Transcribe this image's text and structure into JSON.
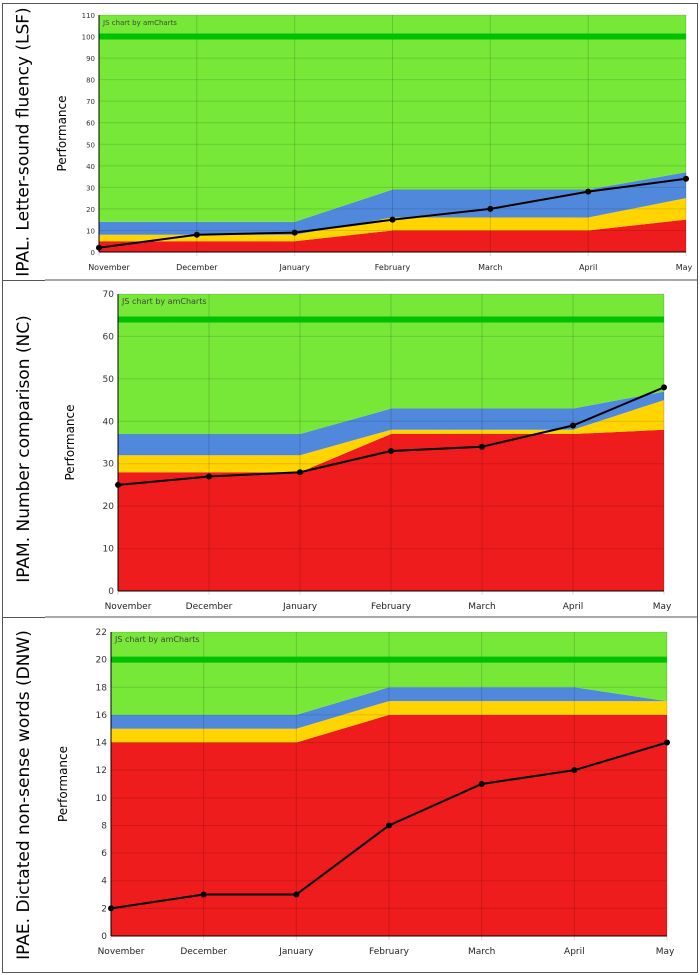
{
  "chart_data": [
    {
      "type": "area",
      "section_label": "IPAL. Letter-sound fluency (LSF)",
      "ylabel": "Performance",
      "watermark": "JS chart by amCharts",
      "categories": [
        "November",
        "December",
        "January",
        "February",
        "March",
        "April",
        "May"
      ],
      "ylim": [
        0,
        110
      ],
      "yticks": [
        0,
        10,
        20,
        30,
        40,
        50,
        60,
        70,
        80,
        90,
        100,
        110
      ],
      "target": 100,
      "bands_cumulative_top": {
        "red": [
          5,
          5,
          5,
          10,
          10,
          10,
          15
        ],
        "yellow": [
          8,
          8,
          8,
          16,
          16,
          16,
          25
        ],
        "blue": [
          14,
          14,
          14,
          29,
          29,
          29,
          37
        ],
        "green": [
          110,
          110,
          110,
          110,
          110,
          110,
          110
        ]
      },
      "line": [
        2,
        8,
        9,
        15,
        20,
        28,
        34
      ]
    },
    {
      "type": "area",
      "section_label": "IPAM. Number comparison (NC)",
      "ylabel": "Performance",
      "watermark": "JS chart by amCharts",
      "categories": [
        "November",
        "December",
        "January",
        "February",
        "March",
        "April",
        "May"
      ],
      "ylim": [
        0,
        70
      ],
      "yticks": [
        0,
        10,
        20,
        30,
        40,
        50,
        60,
        70
      ],
      "target": 64,
      "bands_cumulative_top": {
        "red": [
          28,
          28,
          28,
          37,
          37,
          37,
          38
        ],
        "yellow": [
          32,
          32,
          32,
          38,
          38,
          38,
          45
        ],
        "blue": [
          37,
          37,
          37,
          43,
          43,
          43,
          47
        ],
        "green": [
          70,
          70,
          70,
          70,
          70,
          70,
          70
        ]
      },
      "line": [
        25,
        27,
        28,
        33,
        34,
        39,
        48
      ]
    },
    {
      "type": "area",
      "section_label": "IPAE. Dictated non-sense words (DNW)",
      "ylabel": "Performance",
      "watermark": "JS chart by amCharts",
      "categories": [
        "November",
        "December",
        "January",
        "February",
        "March",
        "April",
        "May"
      ],
      "ylim": [
        0,
        22
      ],
      "yticks": [
        0,
        2,
        4,
        6,
        8,
        10,
        12,
        14,
        16,
        18,
        20,
        22
      ],
      "target": 20,
      "bands_cumulative_top": {
        "red": [
          14,
          14,
          14,
          16,
          16,
          16,
          16
        ],
        "yellow": [
          15,
          15,
          15,
          17,
          17,
          17,
          17
        ],
        "blue": [
          16,
          16,
          16,
          18,
          18,
          18,
          17
        ],
        "green": [
          22,
          22,
          22,
          22,
          22,
          22,
          22
        ]
      },
      "line": [
        2,
        3,
        3,
        8,
        11,
        12,
        14
      ]
    }
  ],
  "colors": {
    "red": "#ee1c1c",
    "yellow": "#ffd400",
    "blue": "#5089dc",
    "green": "#77e838",
    "target": "#00c000",
    "line": "#000000"
  }
}
